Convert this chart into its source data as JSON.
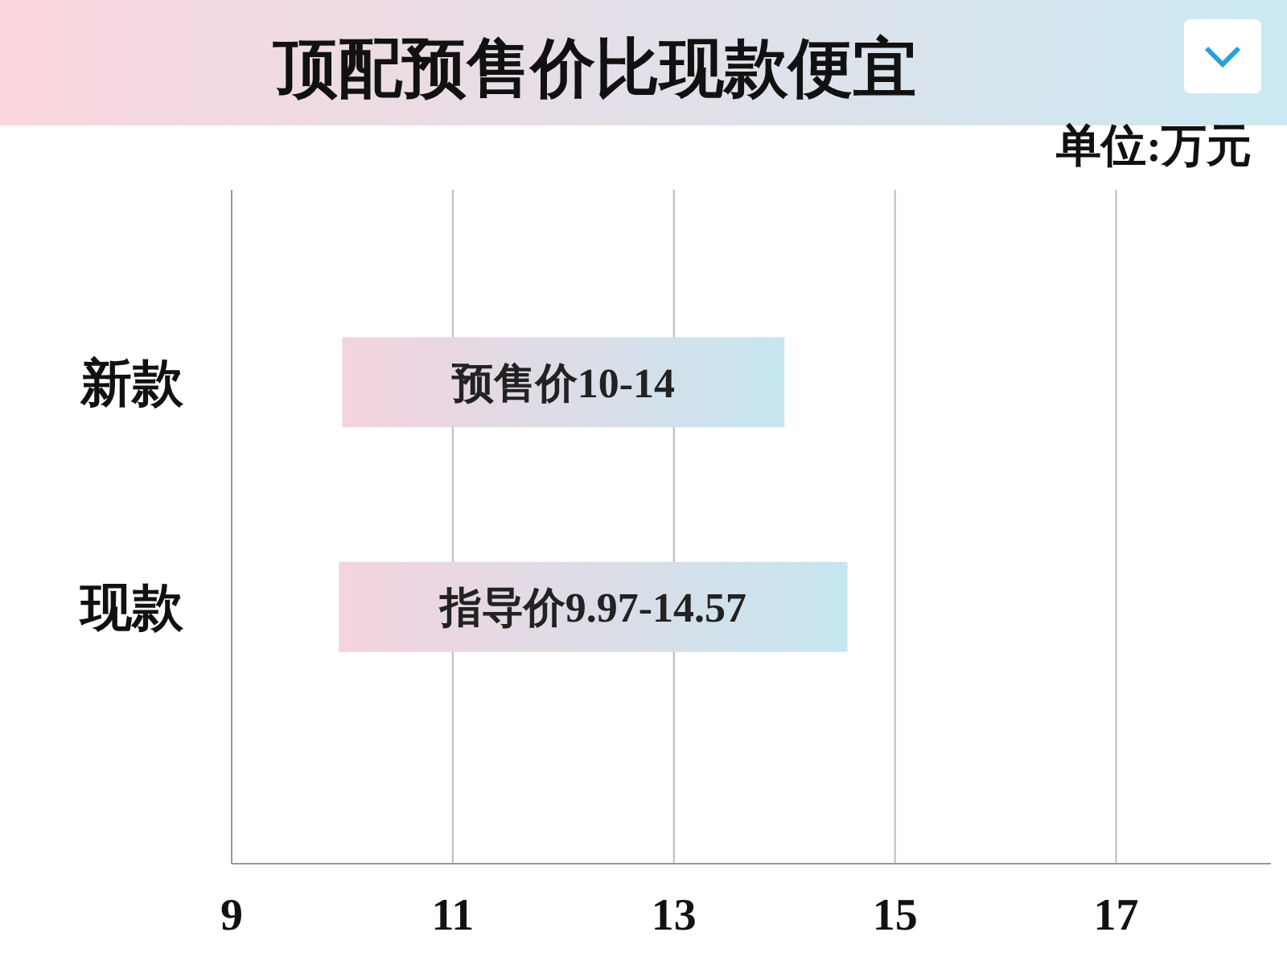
{
  "chart_data": {
    "type": "bar",
    "orientation": "horizontal",
    "title": "顶配预售价比现款便宜",
    "subtitle": "单位:万元",
    "categories": [
      "新款",
      "现款"
    ],
    "base": [
      10,
      9.97
    ],
    "values": [
      4,
      4.6
    ],
    "value_labels": [
      "预售价10-14",
      "指导价9.97-14.57"
    ],
    "color": "#f3d3de",
    "xlim": [
      9,
      18.4
    ],
    "xticks": [
      9,
      11,
      13,
      15,
      17
    ],
    "grid": "x"
  }
}
